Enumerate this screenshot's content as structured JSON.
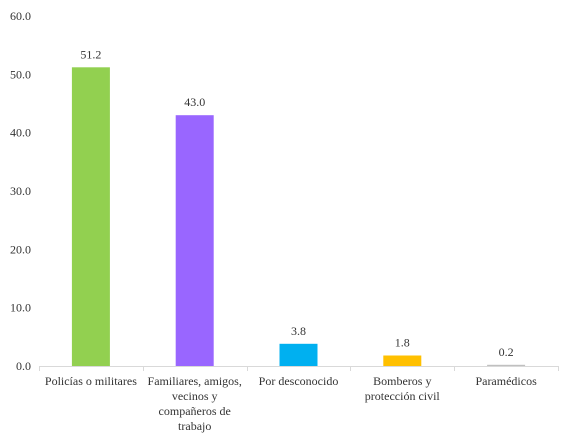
{
  "chart_data": {
    "type": "bar",
    "title": "",
    "xlabel": "",
    "ylabel": "",
    "categories": [
      [
        "Policías o militares"
      ],
      [
        "Familiares, amigos,",
        "vecinos y",
        "compañeros de",
        "trabajo"
      ],
      [
        "Por desconocido"
      ],
      [
        "Bomberos y",
        "protección civil"
      ],
      [
        "Paramédicos"
      ]
    ],
    "values": [
      51.2,
      43.0,
      3.8,
      1.8,
      0.2
    ],
    "value_labels": [
      "51.2",
      "43.0",
      "3.8",
      "1.8",
      "0.2"
    ],
    "bar_colors": [
      "#92d050",
      "#9966ff",
      "#00b0f0",
      "#ffc000",
      "#c0c0c0"
    ],
    "ylim": [
      0,
      60
    ],
    "yticks": [
      0,
      10,
      20,
      30,
      40,
      50,
      60
    ],
    "ytick_labels": [
      "0.0",
      "10.0",
      "20.0",
      "30.0",
      "40.0",
      "50.0",
      "60.0"
    ],
    "grid": false,
    "legend": "none"
  }
}
